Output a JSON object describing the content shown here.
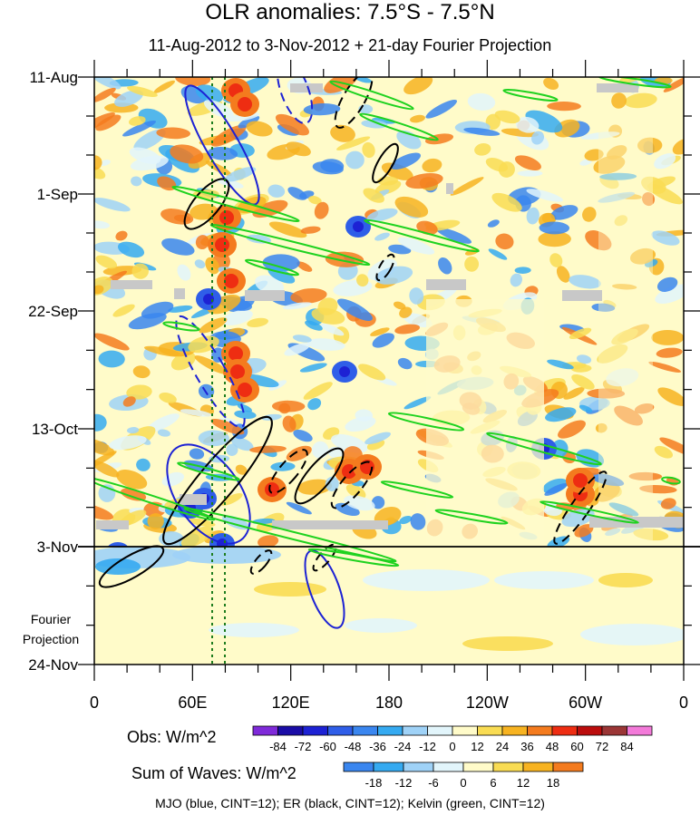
{
  "title": "OLR anomalies: 7.5°S - 7.5°N",
  "subtitle": "11-Aug-2012 to 3-Nov-2012 + 21-day Fourier Projection",
  "footer": "MJO (blue, CINT=12); ER (black, CINT=12); Kelvin (green, CINT=12)",
  "projection_label_line1": "Fourier",
  "projection_label_line2": "Projection",
  "colorbar_obs": {
    "label": "Obs: W/m^2",
    "ticks": [
      "-84",
      "-72",
      "-60",
      "-48",
      "-36",
      "-24",
      "-12",
      "0",
      "12",
      "24",
      "36",
      "48",
      "60",
      "72",
      "84"
    ],
    "colors": [
      "#7f2ad9",
      "#1a0ca6",
      "#1d22d4",
      "#2f5ee8",
      "#3a86ef",
      "#35aaf1",
      "#9fd2f7",
      "#e2f5fb",
      "#fffbc9",
      "#f9dc53",
      "#f7b321",
      "#f47b1e",
      "#ee2d12",
      "#bb0d0d",
      "#9b3636",
      "#f37ad9"
    ]
  },
  "colorbar_waves": {
    "label": "Sum of Waves: W/m^2",
    "ticks": [
      "-18",
      "-12",
      "-6",
      "0",
      "6",
      "12",
      "18"
    ],
    "colors": [
      "#3a86ef",
      "#35aaf1",
      "#9fd2f7",
      "#e2f5fb",
      "#fffbc9",
      "#f9dc53",
      "#f7b321",
      "#f47b1e"
    ]
  },
  "chart_data": {
    "type": "heatmap",
    "title": "OLR anomalies: 7.5°S - 7.5°N",
    "subtitle": "11-Aug-2012 to 3-Nov-2012 + 21-day Fourier Projection",
    "x_axis": {
      "ticks": [
        "0",
        "60E",
        "120E",
        "180",
        "120W",
        "60W",
        "0"
      ],
      "range_deg_east": [
        0,
        360
      ]
    },
    "y_axis": {
      "ticks": [
        "11-Aug",
        "1-Sep",
        "22-Sep",
        "13-Oct",
        "3-Nov",
        "24-Nov"
      ],
      "direction": "time increases downward"
    },
    "projection_boundary": "3-Nov",
    "units": "W/m^2",
    "contour_intervals": {
      "MJO": 12,
      "ER": 12,
      "Kelvin": 12
    },
    "series": [
      {
        "name": "MJO",
        "color": "blue"
      },
      {
        "name": "ER",
        "color": "black"
      },
      {
        "name": "Kelvin",
        "color": "green"
      }
    ],
    "reference_longitudes_dotted": [
      72,
      80
    ],
    "grid": false
  }
}
